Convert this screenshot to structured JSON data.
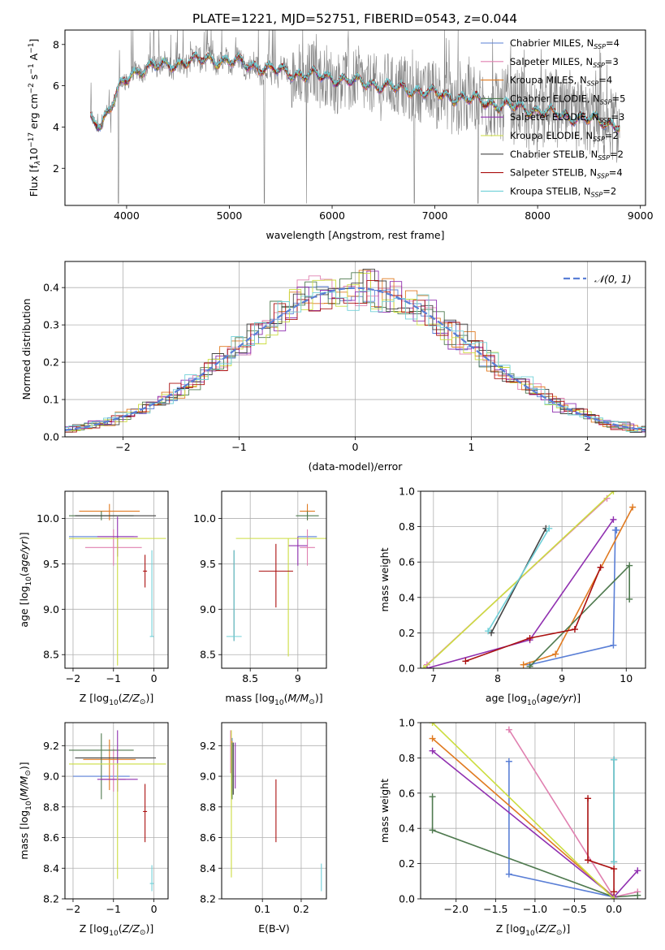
{
  "figure_title": "PLATE=1221, MJD=52751, FIBERID=0543, z=0.044",
  "colors": {
    "chabrier_miles": "#5a7fd6",
    "salpeter_miles": "#e080b0",
    "kroupa_miles": "#e07a20",
    "chabrier_elodie": "#4f7a4f",
    "salpeter_elodie": "#9030b0",
    "kroupa_elodie": "#ccdd40",
    "chabrier_stelib": "#444444",
    "salpeter_stelib": "#aa1010",
    "kroupa_stelib": "#70d0d8",
    "data": "#808080",
    "gauss": "#5a7fd6"
  },
  "chart_data": [
    {
      "id": "spectrum",
      "type": "line",
      "xlabel": "wavelength [Angstrom, rest frame]",
      "ylabel": "Flux [f",
      "xlim": [
        3400,
        9050
      ],
      "ylim": [
        0.2,
        8.7
      ],
      "xticks": [
        4000,
        5000,
        6000,
        7000,
        8000,
        9000
      ],
      "yticks": [
        2,
        4,
        6,
        8
      ],
      "legend_position": "upper-right",
      "legend": [
        {
          "label": "Chabrier MILES, N",
          "n": "4",
          "color_key": "chabrier_miles"
        },
        {
          "label": "Salpeter MILES, N",
          "n": "3",
          "color_key": "salpeter_miles"
        },
        {
          "label": "Kroupa MILES, N",
          "n": "4",
          "color_key": "kroupa_miles"
        },
        {
          "label": "Chabrier ELODIE, N",
          "n": "5",
          "color_key": "chabrier_elodie"
        },
        {
          "label": "Salpeter ELODIE, N",
          "n": "3",
          "color_key": "salpeter_elodie"
        },
        {
          "label": "Kroupa ELODIE, N",
          "n": "2",
          "color_key": "kroupa_elodie"
        },
        {
          "label": "Chabrier STELIB, N",
          "n": "2",
          "color_key": "chabrier_stelib"
        },
        {
          "label": "Salpeter STELIB, N",
          "n": "4",
          "color_key": "salpeter_stelib"
        },
        {
          "label": "Kroupa STELIB, N",
          "n": "2",
          "color_key": "kroupa_stelib"
        }
      ],
      "continuum_knots": [
        [
          3650,
          4.4
        ],
        [
          3750,
          4.2
        ],
        [
          3850,
          5.0
        ],
        [
          3950,
          6.0
        ],
        [
          4050,
          6.6
        ],
        [
          4200,
          6.9
        ],
        [
          4400,
          7.0
        ],
        [
          4600,
          7.2
        ],
        [
          4800,
          7.3
        ],
        [
          5000,
          7.2
        ],
        [
          5200,
          7.0
        ],
        [
          5400,
          6.8
        ],
        [
          5600,
          6.6
        ],
        [
          5800,
          6.5
        ],
        [
          6000,
          6.4
        ],
        [
          6200,
          6.2
        ],
        [
          6400,
          6.1
        ],
        [
          6600,
          5.9
        ],
        [
          6800,
          5.8
        ],
        [
          7000,
          5.6
        ],
        [
          7200,
          5.45
        ],
        [
          7400,
          5.3
        ],
        [
          7600,
          5.1
        ],
        [
          7800,
          4.95
        ],
        [
          8000,
          4.8
        ],
        [
          8200,
          4.6
        ],
        [
          8400,
          4.45
        ],
        [
          8600,
          4.3
        ],
        [
          8800,
          4.1
        ]
      ],
      "dips": [
        [
          3920,
          0.3
        ],
        [
          5340,
          0.3
        ],
        [
          5750,
          0.3
        ],
        [
          6800,
          0.3
        ],
        [
          7420,
          0.3
        ]
      ]
    },
    {
      "id": "residuals",
      "type": "line",
      "xlabel": "(data-model)/error",
      "ylabel": "Normed distribution",
      "xlim": [
        -2.5,
        2.5
      ],
      "ylim": [
        0,
        0.47
      ],
      "xticks": [
        -2,
        -1,
        0,
        1,
        2
      ],
      "yticks": [
        0.0,
        0.1,
        0.2,
        0.3,
        0.4
      ],
      "legend_position": "upper-right",
      "legend_label": "𝒩(0, 1)",
      "gauss_mean": 0,
      "gauss_sigma": 1,
      "bin_width": 0.1
    },
    {
      "id": "age_vs_Z",
      "type": "scatter",
      "xlabel": "Z [log",
      "ylabel": "age  [log",
      "xlim": [
        -2.2,
        0.35
      ],
      "ylim": [
        8.35,
        10.3
      ],
      "xticks": [
        -2,
        -1,
        0
      ],
      "yticks": [
        8.5,
        9.0,
        9.5,
        10.0
      ],
      "points": [
        {
          "x": -1.3,
          "y": 9.8,
          "xerr": 0.8,
          "yerr": [
            0.0,
            0.0
          ],
          "color_key": "chabrier_miles"
        },
        {
          "x": -1.0,
          "y": 9.68,
          "xerr": 0.7,
          "yerr": [
            0.2,
            0.2
          ],
          "color_key": "salpeter_miles"
        },
        {
          "x": -1.1,
          "y": 10.08,
          "xerr": 0.75,
          "yerr": [
            0.1,
            0.08
          ],
          "color_key": "kroupa_miles"
        },
        {
          "x": -1.3,
          "y": 10.03,
          "xerr": 0.8,
          "yerr": [
            0.05,
            0.05
          ],
          "color_key": "chabrier_elodie"
        },
        {
          "x": -0.9,
          "y": 9.8,
          "xerr": 0.5,
          "yerr": [
            0.22,
            0.22
          ],
          "color_key": "salpeter_elodie"
        },
        {
          "x": -0.9,
          "y": 9.78,
          "xerr": 1.2,
          "yerr": [
            1.4,
            0.0
          ],
          "color_key": "kroupa_elodie"
        },
        {
          "x": -0.95,
          "y": 10.03,
          "xerr": 1.0,
          "yerr": [
            0.0,
            0.0
          ],
          "color_key": "chabrier_stelib"
        },
        {
          "x": -0.22,
          "y": 9.42,
          "xerr": 0.05,
          "yerr": [
            0.18,
            0.18
          ],
          "color_key": "salpeter_stelib"
        },
        {
          "x": -0.05,
          "y": 8.7,
          "xerr": 0.05,
          "yerr": [
            0.0,
            0.95
          ],
          "color_key": "kroupa_stelib"
        }
      ]
    },
    {
      "id": "age_vs_mass",
      "type": "scatter",
      "xlabel": "mass [log",
      "ylabel": "",
      "xlim": [
        8.2,
        9.3
      ],
      "ylim": [
        8.35,
        10.3
      ],
      "xticks": [
        8.5,
        9.0
      ],
      "yticks": [
        8.5,
        9.0,
        9.5,
        10.0
      ],
      "points": [
        {
          "x": 9.1,
          "y": 9.8,
          "xerr": 0.1,
          "yerr": [
            0.1,
            0.0
          ],
          "color_key": "chabrier_miles"
        },
        {
          "x": 9.1,
          "y": 9.68,
          "xerr": 0.08,
          "yerr": [
            0.2,
            0.2
          ],
          "color_key": "salpeter_miles"
        },
        {
          "x": 9.1,
          "y": 10.08,
          "xerr": 0.08,
          "yerr": [
            0.1,
            0.08
          ],
          "color_key": "kroupa_miles"
        },
        {
          "x": 9.1,
          "y": 10.03,
          "xerr": 0.12,
          "yerr": [
            0.05,
            0.05
          ],
          "color_key": "chabrier_elodie"
        },
        {
          "x": 9.0,
          "y": 9.7,
          "xerr": 0.1,
          "yerr": [
            0.22,
            0.1
          ],
          "color_key": "salpeter_elodie"
        },
        {
          "x": 8.9,
          "y": 9.78,
          "xerr": 0.55,
          "yerr": [
            1.3,
            0.0
          ],
          "color_key": "kroupa_elodie"
        },
        {
          "x": 8.33,
          "y": 9.0,
          "xerr": 0.0,
          "yerr": [
            0.35,
            0.65
          ],
          "color_key": "chabrier_stelib"
        },
        {
          "x": 8.77,
          "y": 9.42,
          "xerr": 0.18,
          "yerr": [
            0.4,
            0.3
          ],
          "color_key": "salpeter_stelib"
        },
        {
          "x": 8.33,
          "y": 8.7,
          "xerr": 0.08,
          "yerr": [
            0.05,
            0.95
          ],
          "color_key": "kroupa_stelib"
        }
      ]
    },
    {
      "id": "weight_vs_age",
      "type": "line",
      "xlabel": "age  [log",
      "ylabel": "mass weight",
      "xlim": [
        6.8,
        10.3
      ],
      "ylim": [
        0,
        1.0
      ],
      "xticks": [
        7,
        8,
        9,
        10
      ],
      "yticks": [
        0.0,
        0.2,
        0.4,
        0.6,
        0.8,
        1.0
      ],
      "series": [
        {
          "color_key": "chabrier_miles",
          "x": [
            8.5,
            9.8,
            9.83,
            9.85
          ],
          "y": [
            0.02,
            0.13,
            0.78,
            0.78
          ]
        },
        {
          "color_key": "salpeter_miles",
          "x": [
            6.9,
            9.7
          ],
          "y": [
            0.02,
            0.96
          ]
        },
        {
          "color_key": "kroupa_miles",
          "x": [
            8.4,
            8.9,
            10.1
          ],
          "y": [
            0.02,
            0.08,
            0.91
          ]
        },
        {
          "color_key": "chabrier_elodie",
          "x": [
            8.5,
            10.05,
            10.05
          ],
          "y": [
            0.01,
            0.58,
            0.39
          ]
        },
        {
          "color_key": "salpeter_elodie",
          "x": [
            6.9,
            8.5,
            9.8
          ],
          "y": [
            0.0,
            0.16,
            0.84
          ]
        },
        {
          "color_key": "kroupa_elodie",
          "x": [
            6.85,
            9.8
          ],
          "y": [
            0.0,
            1.0
          ]
        },
        {
          "color_key": "chabrier_stelib",
          "x": [
            7.9,
            8.75
          ],
          "y": [
            0.2,
            0.79
          ]
        },
        {
          "color_key": "salpeter_stelib",
          "x": [
            7.5,
            8.5,
            9.2,
            9.6
          ],
          "y": [
            0.04,
            0.17,
            0.22,
            0.57
          ]
        },
        {
          "color_key": "kroupa_stelib",
          "x": [
            7.85,
            8.8
          ],
          "y": [
            0.21,
            0.79
          ]
        }
      ]
    },
    {
      "id": "mass_vs_Z",
      "type": "scatter",
      "xlabel": "Z [log",
      "ylabel": "mass [log",
      "xlim": [
        -2.2,
        0.35
      ],
      "ylim": [
        8.2,
        9.35
      ],
      "xticks": [
        -2,
        -1,
        0
      ],
      "yticks": [
        8.2,
        8.4,
        8.6,
        8.8,
        9.0,
        9.2
      ],
      "points": [
        {
          "x": -1.3,
          "y": 9.0,
          "xerr": 0.7,
          "yerr": [
            0.0,
            0.0
          ],
          "color_key": "chabrier_miles"
        },
        {
          "x": -1.0,
          "y": 8.98,
          "xerr": 0.3,
          "yerr": [
            0.08,
            0.2
          ],
          "color_key": "salpeter_miles"
        },
        {
          "x": -1.1,
          "y": 9.11,
          "xerr": 0.65,
          "yerr": [
            0.2,
            0.13
          ],
          "color_key": "kroupa_miles"
        },
        {
          "x": -1.3,
          "y": 9.17,
          "xerr": 0.8,
          "yerr": [
            0.32,
            0.11
          ],
          "color_key": "chabrier_elodie"
        },
        {
          "x": -0.9,
          "y": 8.98,
          "xerr": 0.5,
          "yerr": [
            0.08,
            0.32
          ],
          "color_key": "salpeter_elodie"
        },
        {
          "x": -0.9,
          "y": 9.08,
          "xerr": 1.2,
          "yerr": [
            0.75,
            0.0
          ],
          "color_key": "kroupa_elodie"
        },
        {
          "x": -0.95,
          "y": 9.12,
          "xerr": 1.0,
          "yerr": [
            0.0,
            0.0
          ],
          "color_key": "chabrier_stelib"
        },
        {
          "x": -0.22,
          "y": 8.77,
          "xerr": 0.05,
          "yerr": [
            0.2,
            0.18
          ],
          "color_key": "salpeter_stelib"
        },
        {
          "x": -0.05,
          "y": 8.3,
          "xerr": 0.05,
          "yerr": [
            0.05,
            0.12
          ],
          "color_key": "kroupa_stelib"
        }
      ]
    },
    {
      "id": "mass_vs_ebv",
      "type": "scatter",
      "xlabel": "E(B-V)",
      "ylabel": "",
      "xlim": [
        -0.005,
        0.265
      ],
      "ylim": [
        8.2,
        9.35
      ],
      "xticks": [
        0.1,
        0.2
      ],
      "yticks": [
        8.2,
        8.4,
        8.6,
        8.8,
        9.0,
        9.2
      ],
      "points": [
        {
          "x": 0.022,
          "y": 9.1,
          "xerr": 0.0,
          "yerr": [
            0.1,
            0.15
          ],
          "color_key": "chabrier_miles"
        },
        {
          "x": 0.018,
          "y": 9.1,
          "xerr": 0.0,
          "yerr": [
            0.08,
            0.2
          ],
          "color_key": "salpeter_miles"
        },
        {
          "x": 0.022,
          "y": 9.1,
          "xerr": 0.0,
          "yerr": [
            0.2,
            0.13
          ],
          "color_key": "kroupa_miles"
        },
        {
          "x": 0.022,
          "y": 9.1,
          "xerr": 0.0,
          "yerr": [
            0.25,
            0.12
          ],
          "color_key": "chabrier_elodie"
        },
        {
          "x": 0.03,
          "y": 9.1,
          "xerr": 0.0,
          "yerr": [
            0.18,
            0.12
          ],
          "color_key": "salpeter_elodie"
        },
        {
          "x": 0.02,
          "y": 9.0,
          "xerr": 0.0,
          "yerr": [
            0.66,
            0.3
          ],
          "color_key": "kroupa_elodie"
        },
        {
          "x": 0.025,
          "y": 9.0,
          "xerr": 0.0,
          "yerr": [
            0.12,
            0.22
          ],
          "color_key": "chabrier_stelib"
        },
        {
          "x": 0.135,
          "y": 8.77,
          "xerr": 0.0,
          "yerr": [
            0.2,
            0.21
          ],
          "color_key": "salpeter_stelib"
        },
        {
          "x": 0.252,
          "y": 8.33,
          "xerr": 0.0,
          "yerr": [
            0.08,
            0.1
          ],
          "color_key": "kroupa_stelib"
        }
      ]
    },
    {
      "id": "weight_vs_Z",
      "type": "line",
      "xlabel": "Z [log",
      "ylabel": "mass weight",
      "xlim": [
        -2.45,
        0.4
      ],
      "ylim": [
        0,
        1.0
      ],
      "xticks": [
        -2.0,
        -1.5,
        -1.0,
        -0.5,
        0.0
      ],
      "yticks": [
        0.0,
        0.2,
        0.4,
        0.6,
        0.8,
        1.0
      ],
      "series": [
        {
          "color_key": "chabrier_miles",
          "x": [
            -1.33,
            -1.33,
            0.0
          ],
          "y": [
            0.78,
            0.14,
            0.01
          ]
        },
        {
          "color_key": "salpeter_miles",
          "x": [
            -1.33,
            0.0,
            0.3
          ],
          "y": [
            0.96,
            0.01,
            0.04
          ]
        },
        {
          "color_key": "kroupa_miles",
          "x": [
            -2.3,
            0.0
          ],
          "y": [
            0.91,
            0.01
          ]
        },
        {
          "color_key": "chabrier_elodie",
          "x": [
            -2.3,
            -2.3,
            0.0,
            0.3
          ],
          "y": [
            0.58,
            0.39,
            0.01,
            0.02
          ]
        },
        {
          "color_key": "salpeter_elodie",
          "x": [
            -2.3,
            0.0,
            0.3
          ],
          "y": [
            0.84,
            0.01,
            0.16
          ]
        },
        {
          "color_key": "kroupa_elodie",
          "x": [
            -2.3,
            0.0
          ],
          "y": [
            1.0,
            0.0
          ]
        },
        {
          "color_key": "chabrier_stelib",
          "x": [
            0.0,
            0.0
          ],
          "y": [
            0.21,
            0.79
          ]
        },
        {
          "color_key": "salpeter_stelib",
          "x": [
            -0.33,
            -0.33,
            0.0,
            0.0
          ],
          "y": [
            0.57,
            0.22,
            0.17,
            0.04
          ]
        },
        {
          "color_key": "kroupa_stelib",
          "x": [
            0.0,
            0.0
          ],
          "y": [
            0.21,
            0.79
          ]
        }
      ]
    }
  ]
}
